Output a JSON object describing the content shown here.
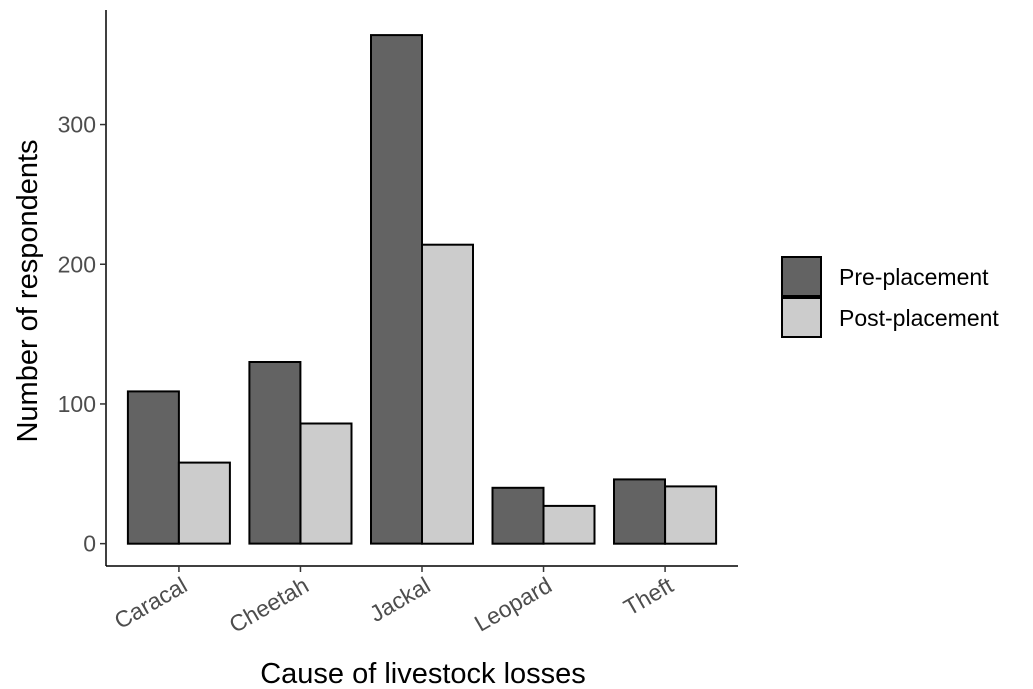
{
  "chart_data": {
    "type": "bar",
    "title": "",
    "xlabel": "Cause of livestock losses",
    "ylabel": "Number of respondents",
    "categories": [
      "Caracal",
      "Cheetah",
      "Jackal",
      "Leopard",
      "Theft"
    ],
    "series": [
      {
        "name": "Pre-placement",
        "values": [
          109,
          130,
          364,
          40,
          46
        ],
        "color": "#636363"
      },
      {
        "name": "Post-placement",
        "values": [
          58,
          86,
          214,
          27,
          41
        ],
        "color": "#cccccc"
      }
    ],
    "ylim": [
      -16,
      382
    ],
    "yticks": [
      0,
      100,
      200,
      300
    ],
    "grid": false,
    "legend_position": "right"
  }
}
